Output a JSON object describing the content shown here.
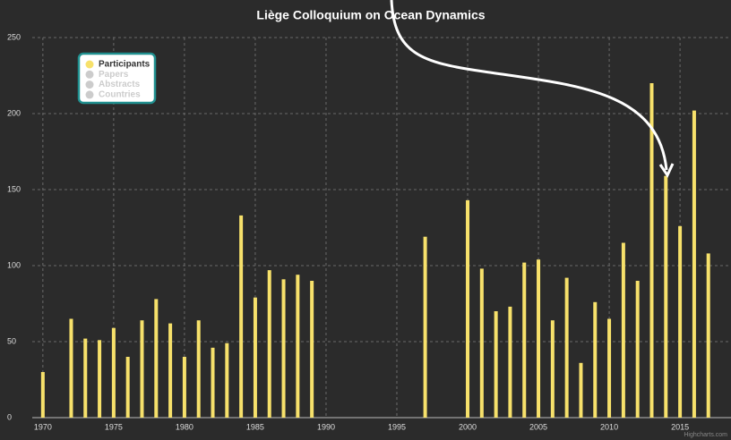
{
  "chart_data": {
    "type": "bar",
    "title": "Liège Colloquium on Ocean Dynamics",
    "x": [
      1970,
      1972,
      1973,
      1974,
      1975,
      1976,
      1977,
      1978,
      1979,
      1980,
      1981,
      1982,
      1983,
      1984,
      1985,
      1986,
      1987,
      1988,
      1989,
      1997,
      2000,
      2001,
      2002,
      2003,
      2004,
      2005,
      2006,
      2007,
      2008,
      2009,
      2010,
      2011,
      2012,
      2013,
      2014,
      2015,
      2016,
      2017
    ],
    "series": [
      {
        "name": "Participants",
        "color": "#f7e16b",
        "visible": true,
        "values": [
          30,
          65,
          52,
          51,
          59,
          40,
          64,
          78,
          62,
          40,
          64,
          46,
          49,
          133,
          79,
          97,
          91,
          94,
          90,
          119,
          143,
          98,
          70,
          73,
          102,
          104,
          64,
          92,
          36,
          76,
          65,
          115,
          90,
          220,
          159,
          126,
          202,
          108
        ]
      },
      {
        "name": "Papers",
        "color": "#cccccc",
        "visible": false
      },
      {
        "name": "Abstracts",
        "color": "#cccccc",
        "visible": false
      },
      {
        "name": "Countries",
        "color": "#cccccc",
        "visible": false
      }
    ],
    "xlim": [
      1969.25,
      2018.6
    ],
    "xticks": [
      1970,
      1975,
      1980,
      1985,
      1990,
      1995,
      2000,
      2005,
      2010,
      2015
    ],
    "ylim": [
      0,
      250
    ],
    "yticks": [
      0,
      50,
      100,
      150,
      200,
      250
    ],
    "grid": true,
    "credits": "Highcharts.com"
  }
}
